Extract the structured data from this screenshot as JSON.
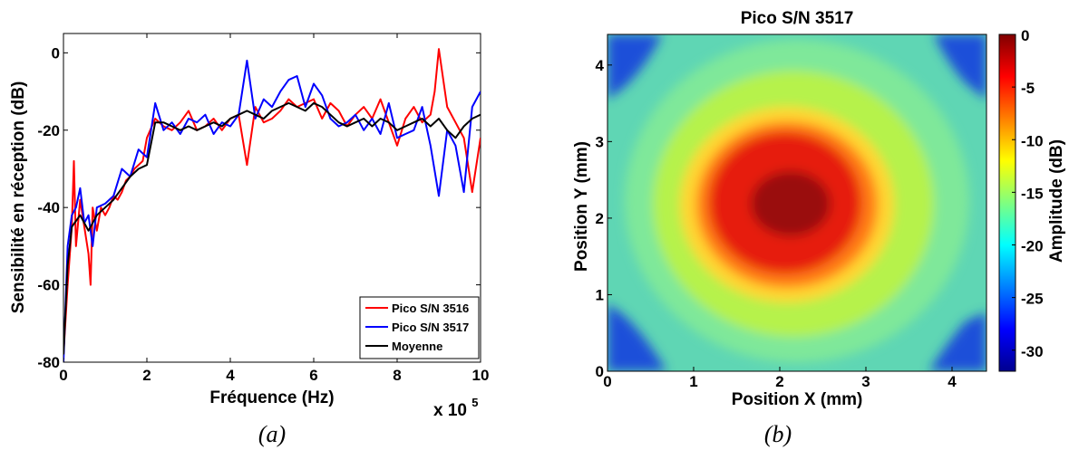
{
  "chart_data": [
    {
      "type": "line",
      "xlabel": "Fréquence (Hz)",
      "ylabel": "Sensibilité en réception (dB)",
      "xlim": [
        0,
        1000000
      ],
      "ylim": [
        -80,
        5
      ],
      "x_ticks": [
        "0",
        "2",
        "4",
        "6",
        "8",
        "10"
      ],
      "y_ticks": [
        "-80",
        "-60",
        "-40",
        "-20",
        "0"
      ],
      "x_scale_label": "x 10",
      "x_scale_exponent": "5",
      "grid": false,
      "legend_position": "bottom-right",
      "caption": "(a)",
      "series": [
        {
          "name": "Pico S/N 3516",
          "color": "#ff0000",
          "x": [
            0,
            10000,
            20000,
            25000,
            30000,
            40000,
            50000,
            60000,
            65000,
            70000,
            80000,
            90000,
            100000,
            110000,
            120000,
            130000,
            140000,
            150000,
            160000,
            170000,
            180000,
            190000,
            200000,
            220000,
            240000,
            260000,
            280000,
            300000,
            320000,
            340000,
            360000,
            380000,
            400000,
            420000,
            440000,
            460000,
            480000,
            500000,
            520000,
            540000,
            560000,
            580000,
            600000,
            620000,
            640000,
            660000,
            680000,
            700000,
            720000,
            740000,
            760000,
            780000,
            800000,
            820000,
            840000,
            860000,
            880000,
            890000,
            900000,
            920000,
            940000,
            960000,
            980000,
            1000000
          ],
          "y": [
            -78,
            -60,
            -45,
            -28,
            -50,
            -38,
            -45,
            -52,
            -60,
            -40,
            -46,
            -40,
            -42,
            -40,
            -37,
            -38,
            -36,
            -33,
            -32,
            -30,
            -29,
            -28,
            -22,
            -17,
            -19,
            -20,
            -18,
            -15,
            -20,
            -19,
            -17,
            -20,
            -17,
            -16,
            -29,
            -14,
            -18,
            -17,
            -15,
            -12,
            -14,
            -13,
            -12,
            -17,
            -13,
            -15,
            -19,
            -16,
            -14,
            -17,
            -12,
            -18,
            -24,
            -17,
            -14,
            -18,
            -16,
            -10,
            1,
            -14,
            -18,
            -22,
            -36,
            -22
          ]
        },
        {
          "name": "Pico S/N 3517",
          "color": "#0000ff",
          "x": [
            0,
            10000,
            20000,
            30000,
            40000,
            50000,
            60000,
            70000,
            80000,
            100000,
            120000,
            140000,
            160000,
            180000,
            200000,
            220000,
            240000,
            260000,
            280000,
            300000,
            320000,
            340000,
            360000,
            380000,
            400000,
            420000,
            440000,
            460000,
            480000,
            500000,
            520000,
            540000,
            560000,
            580000,
            600000,
            620000,
            640000,
            660000,
            680000,
            700000,
            720000,
            740000,
            760000,
            780000,
            800000,
            820000,
            840000,
            860000,
            880000,
            900000,
            920000,
            940000,
            960000,
            980000,
            1000000
          ],
          "y": [
            -80,
            -50,
            -42,
            -40,
            -35,
            -44,
            -42,
            -50,
            -40,
            -39,
            -37,
            -30,
            -32,
            -25,
            -27,
            -13,
            -20,
            -18,
            -21,
            -17,
            -18,
            -16,
            -21,
            -18,
            -19,
            -16,
            -2,
            -17,
            -12,
            -14,
            -10,
            -7,
            -6,
            -14,
            -8,
            -11,
            -17,
            -19,
            -18,
            -16,
            -20,
            -17,
            -21,
            -13,
            -22,
            -21,
            -20,
            -14,
            -24,
            -37,
            -20,
            -24,
            -36,
            -14,
            -10
          ]
        },
        {
          "name": "Moyenne",
          "color": "#000000",
          "x": [
            0,
            10000,
            20000,
            40000,
            60000,
            80000,
            100000,
            120000,
            140000,
            160000,
            180000,
            200000,
            220000,
            240000,
            260000,
            280000,
            300000,
            320000,
            340000,
            360000,
            380000,
            400000,
            420000,
            440000,
            460000,
            480000,
            500000,
            520000,
            540000,
            560000,
            580000,
            600000,
            620000,
            640000,
            660000,
            680000,
            700000,
            720000,
            740000,
            760000,
            780000,
            800000,
            820000,
            840000,
            860000,
            880000,
            900000,
            920000,
            940000,
            960000,
            980000,
            1000000
          ],
          "y": [
            -78,
            -55,
            -45,
            -42,
            -46,
            -42,
            -40,
            -38,
            -35,
            -32,
            -30,
            -29,
            -18,
            -18,
            -19,
            -20,
            -19,
            -20,
            -19,
            -18,
            -19,
            -17,
            -16,
            -15,
            -16,
            -17,
            -15,
            -14,
            -13,
            -14,
            -15,
            -13,
            -14,
            -16,
            -18,
            -19,
            -18,
            -17,
            -19,
            -17,
            -18,
            -20,
            -19,
            -18,
            -17,
            -19,
            -17,
            -20,
            -22,
            -19,
            -17,
            -16
          ]
        }
      ]
    },
    {
      "type": "heatmap",
      "title": "Pico S/N 3517",
      "xlabel": "Position X (mm)",
      "ylabel": "Position Y (mm)",
      "xlim": [
        0,
        4.4
      ],
      "ylim": [
        0,
        4.4
      ],
      "x_ticks": [
        "0",
        "1",
        "2",
        "3",
        "4"
      ],
      "y_ticks": [
        "0",
        "1",
        "2",
        "3",
        "4"
      ],
      "colorbar_label": "Amplitude (dB)",
      "colorbar_ticks": [
        "0",
        "-5",
        "-10",
        "-15",
        "-20",
        "-25",
        "-30"
      ],
      "clim": [
        -32,
        0
      ],
      "colormap": "jet",
      "peak": {
        "x": 2.1,
        "y": 2.15,
        "value": 0
      },
      "caption": "(b)"
    }
  ]
}
